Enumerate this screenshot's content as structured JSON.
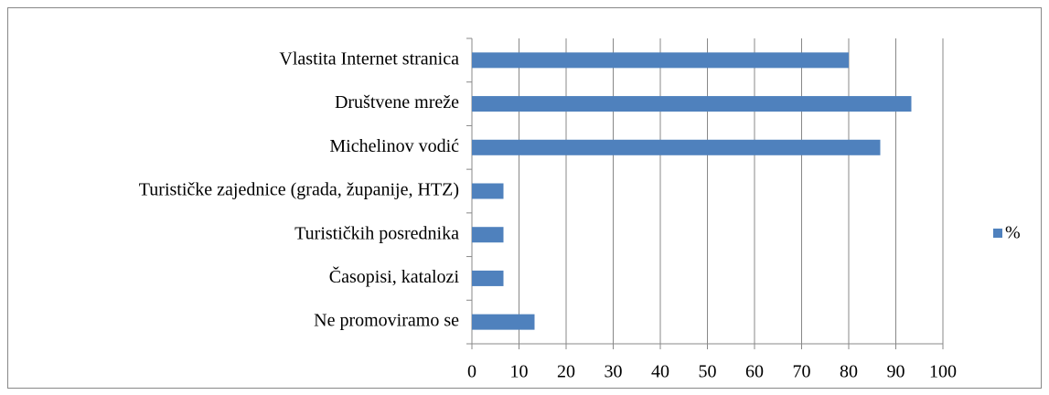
{
  "chart_data": {
    "type": "bar",
    "orientation": "horizontal",
    "categories": [
      "Vlastita Internet stranica",
      "Društvene mreže",
      "Michelinov vodić",
      "Turističke zajednice (grada, županije, HTZ)",
      "Turističkih posrednika",
      "Časopisi, katalozi",
      "Ne promoviramo se"
    ],
    "series": [
      {
        "name": "%",
        "color": "#4f81bd",
        "values": [
          80,
          93.3,
          86.7,
          6.7,
          6.7,
          6.7,
          13.3
        ]
      }
    ],
    "xlim": [
      0,
      100
    ],
    "xticks": [
      0,
      10,
      20,
      30,
      40,
      50,
      60,
      70,
      80,
      90,
      100
    ],
    "grid": true,
    "legend": "right"
  }
}
